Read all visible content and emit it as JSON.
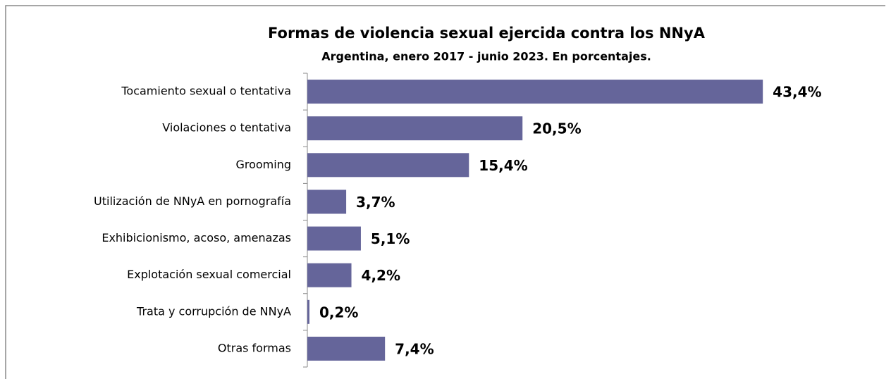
{
  "chart_data": {
    "type": "bar",
    "orientation": "horizontal",
    "title": "Formas de violencia sexual ejercida contra los NNyA",
    "subtitle": "Argentina, enero 2017 - junio 2023. En porcentajes.",
    "categories": [
      "Tocamiento sexual o tentativa",
      "Violaciones o tentativa",
      "Grooming",
      "Utilización de NNyA en pornografía",
      "Exhibicionismo, acoso, amenazas",
      "Explotación sexual comercial",
      "Trata y corrupción de NNyA",
      "Otras formas"
    ],
    "values": [
      43.4,
      20.5,
      15.4,
      3.7,
      5.1,
      4.2,
      0.2,
      7.4
    ],
    "value_labels": [
      "43,4%",
      "20,5%",
      "15,4%",
      "3,7%",
      "5,1%",
      "4,2%",
      "0,2%",
      "7,4%"
    ],
    "color": "#65659a",
    "xlim": [
      0,
      45
    ]
  }
}
